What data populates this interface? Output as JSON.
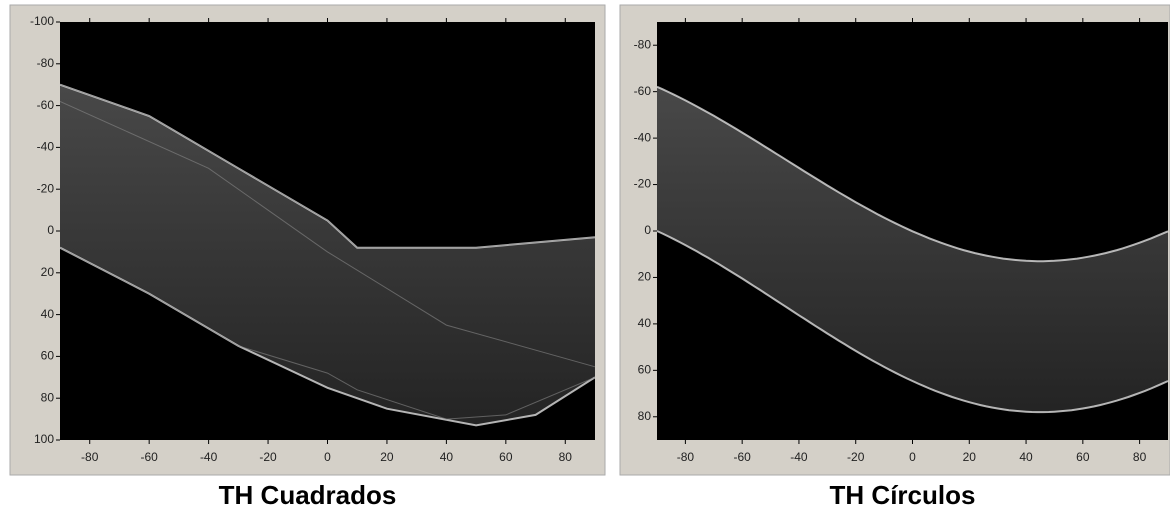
{
  "chart_data": [
    {
      "type": "image",
      "title": "TH Cuadrados",
      "xlim": [
        -90,
        90
      ],
      "ylim": [
        -100,
        100
      ],
      "xticks": [
        -80,
        -60,
        -40,
        -20,
        0,
        20,
        40,
        60,
        80
      ],
      "yticks": [
        -100,
        -80,
        -60,
        -40,
        -20,
        0,
        20,
        40,
        60,
        80,
        100
      ]
    },
    {
      "type": "image",
      "title": "TH Círculos",
      "xlim": [
        -90,
        90
      ],
      "ylim": [
        -90,
        90
      ],
      "xticks": [
        -80,
        -60,
        -40,
        -20,
        0,
        20,
        40,
        60,
        80
      ],
      "yticks": [
        -80,
        -60,
        -40,
        -20,
        0,
        20,
        40,
        60,
        80
      ]
    }
  ]
}
